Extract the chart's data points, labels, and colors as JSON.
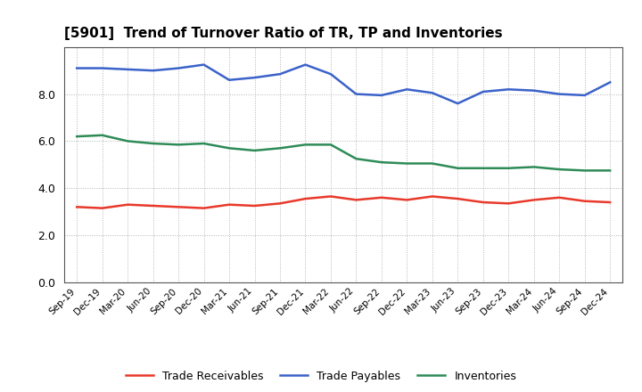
{
  "title": "[5901]  Trend of Turnover Ratio of TR, TP and Inventories",
  "x_labels": [
    "Sep-19",
    "Dec-19",
    "Mar-20",
    "Jun-20",
    "Sep-20",
    "Dec-20",
    "Mar-21",
    "Jun-21",
    "Sep-21",
    "Dec-21",
    "Mar-22",
    "Jun-22",
    "Sep-22",
    "Dec-22",
    "Mar-23",
    "Jun-23",
    "Sep-23",
    "Dec-23",
    "Mar-24",
    "Jun-24",
    "Sep-24",
    "Dec-24"
  ],
  "trade_receivables": [
    3.2,
    3.15,
    3.3,
    3.25,
    3.2,
    3.15,
    3.3,
    3.25,
    3.35,
    3.55,
    3.65,
    3.5,
    3.6,
    3.5,
    3.65,
    3.55,
    3.4,
    3.35,
    3.5,
    3.6,
    3.45,
    3.4
  ],
  "trade_payables": [
    9.1,
    9.1,
    9.05,
    9.0,
    9.1,
    9.25,
    8.6,
    8.7,
    8.85,
    9.25,
    8.85,
    8.0,
    7.95,
    8.2,
    8.05,
    7.6,
    8.1,
    8.2,
    8.15,
    8.0,
    7.95,
    8.5
  ],
  "inventories": [
    6.2,
    6.25,
    6.0,
    5.9,
    5.85,
    5.9,
    5.7,
    5.6,
    5.7,
    5.85,
    5.85,
    5.25,
    5.1,
    5.05,
    5.05,
    4.85,
    4.85,
    4.85,
    4.9,
    4.8,
    4.75,
    4.75
  ],
  "ylim": [
    0,
    10
  ],
  "yticks": [
    0.0,
    2.0,
    4.0,
    6.0,
    8.0
  ],
  "line_colors": {
    "trade_receivables": "#e8392a",
    "trade_payables": "#3a62c9",
    "inventories": "#2e8b57"
  },
  "legend_labels": [
    "Trade Receivables",
    "Trade Payables",
    "Inventories"
  ],
  "bg_color": "#ffffff",
  "grid_color": "#aaaaaa",
  "linewidth": 1.8
}
